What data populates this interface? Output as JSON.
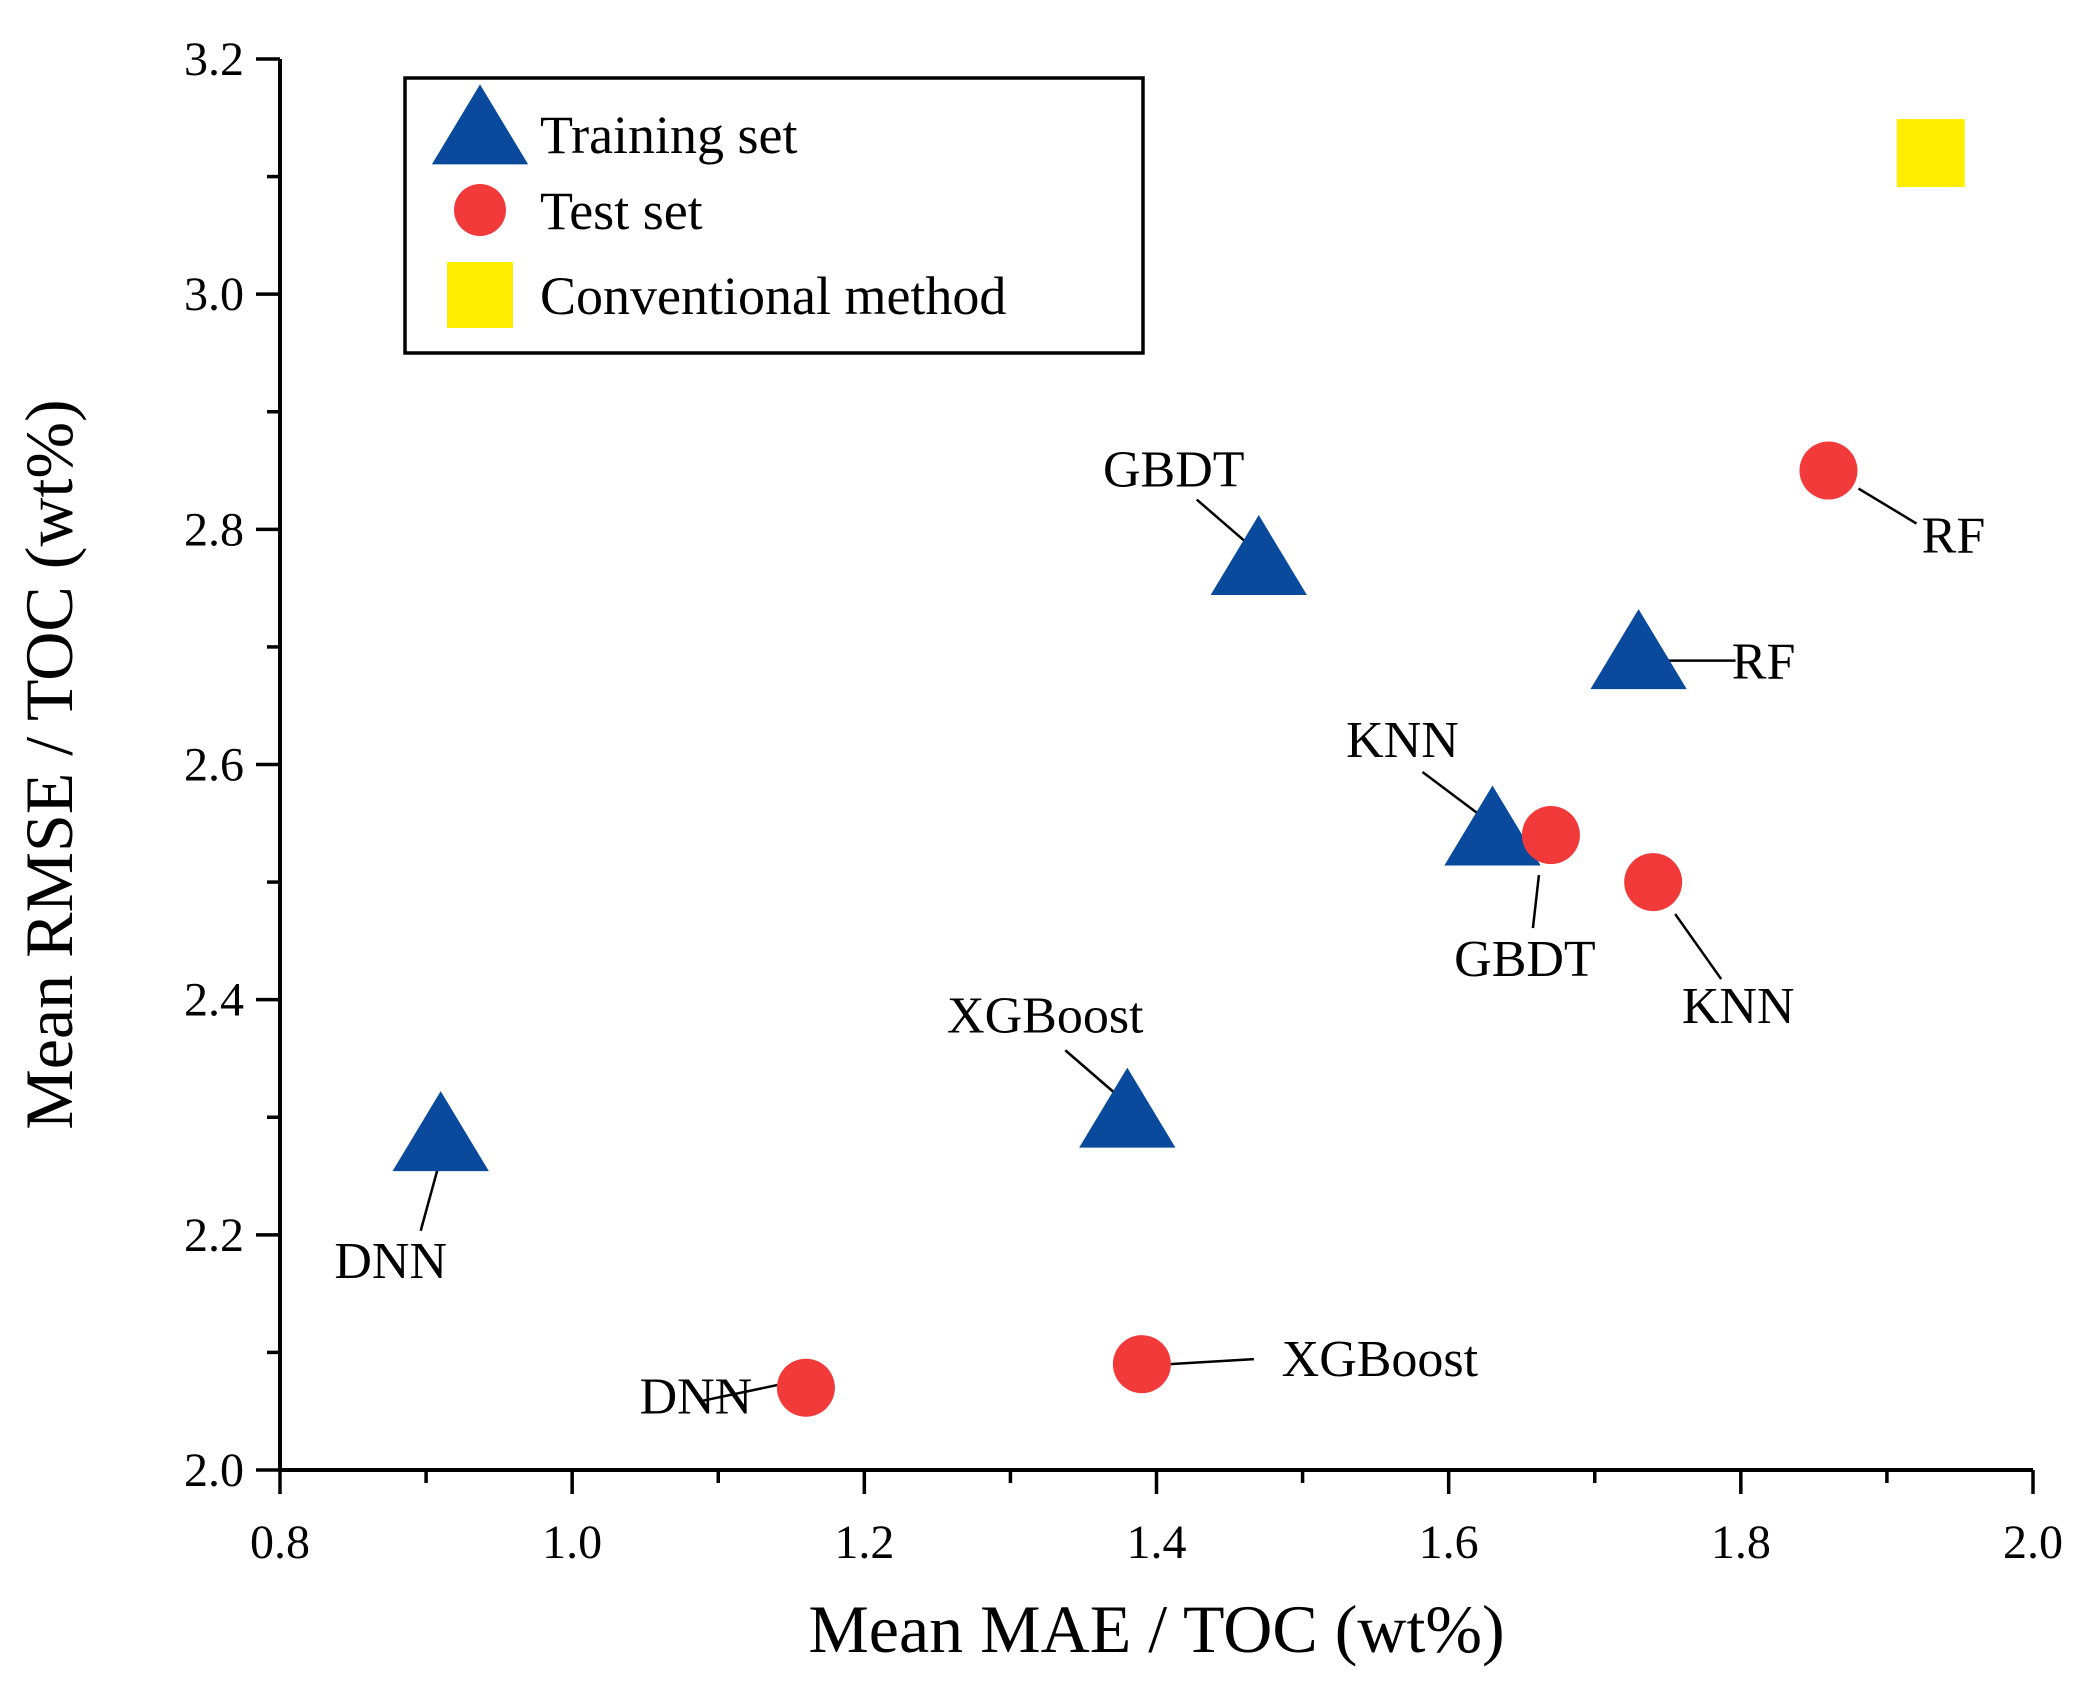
{
  "chart_data": {
    "type": "scatter",
    "xlabel": "Mean MAE / TOC (wt%)",
    "ylabel": "Mean RMSE / TOC (wt%)",
    "xlim": [
      0.8,
      2.0
    ],
    "ylim": [
      2.0,
      3.2
    ],
    "x_ticks": [
      "0.8",
      "1.0",
      "1.2",
      "1.4",
      "1.6",
      "1.8",
      "2.0"
    ],
    "y_ticks": [
      "2.0",
      "2.2",
      "2.4",
      "2.6",
      "2.8",
      "3.0",
      "3.2"
    ],
    "grid": false,
    "legend_position": "top-left",
    "series": [
      {
        "name": "Training set",
        "marker": "triangle",
        "color": "#0a4a9c",
        "points": [
          {
            "label": "DNN",
            "x": 0.91,
            "y": 2.28
          },
          {
            "label": "XGBoost",
            "x": 1.38,
            "y": 2.3
          },
          {
            "label": "GBDT",
            "x": 1.47,
            "y": 2.77
          },
          {
            "label": "KNN",
            "x": 1.63,
            "y": 2.54
          },
          {
            "label": "RF",
            "x": 1.73,
            "y": 2.69
          }
        ]
      },
      {
        "name": "Test set",
        "marker": "circle",
        "color": "#f23a3a",
        "points": [
          {
            "label": "DNN",
            "x": 1.16,
            "y": 2.07
          },
          {
            "label": "XGBoost",
            "x": 1.39,
            "y": 2.09
          },
          {
            "label": "GBDT",
            "x": 1.67,
            "y": 2.54
          },
          {
            "label": "KNN",
            "x": 1.74,
            "y": 2.5
          },
          {
            "label": "RF",
            "x": 1.86,
            "y": 2.85
          }
        ]
      },
      {
        "name": "Conventional method",
        "marker": "square",
        "color": "#ffee00",
        "points": [
          {
            "label": "",
            "x": 1.93,
            "y": 3.12
          }
        ]
      }
    ]
  }
}
